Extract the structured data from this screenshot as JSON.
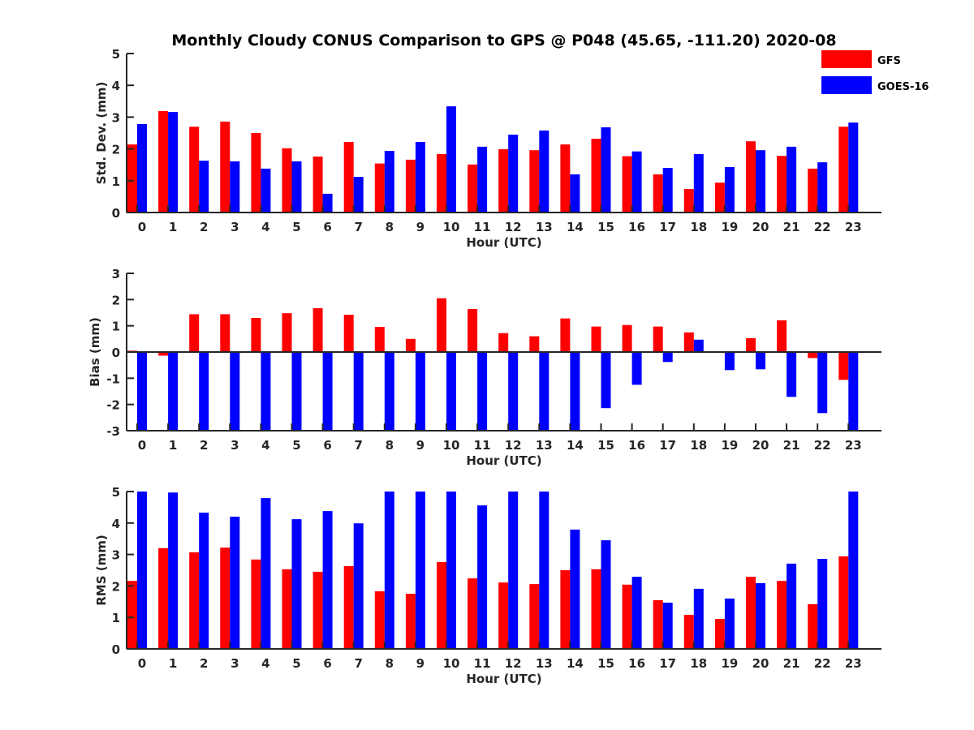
{
  "figure_title": "Monthly Cloudy CONUS Comparison to GPS @ P048 (45.65, -111.20) 2020-08",
  "legend": [
    {
      "label": "GFS",
      "color": "#ff0000"
    },
    {
      "label": "GOES-16",
      "color": "#0000ff"
    }
  ],
  "chart_data": [
    {
      "type": "bar",
      "title": "Monthly Cloudy CONUS Comparison to GPS @ P048 (45.65, -111.20) 2020-08",
      "xlabel": "Hour (UTC)",
      "ylabel": "Std. Dev. (mm)",
      "ylim": [
        0,
        5
      ],
      "yticks": [
        "0",
        "1",
        "2",
        "3",
        "4",
        "5"
      ],
      "categories": [
        "0",
        "1",
        "2",
        "3",
        "4",
        "5",
        "6",
        "7",
        "8",
        "9",
        "10",
        "11",
        "12",
        "13",
        "14",
        "15",
        "16",
        "17",
        "18",
        "19",
        "20",
        "21",
        "22",
        "23"
      ],
      "legend_position": "top-right",
      "grid": false,
      "series": [
        {
          "name": "GFS",
          "color": "#ff0000",
          "values": [
            2.14,
            3.19,
            2.7,
            2.86,
            2.5,
            2.02,
            1.76,
            2.22,
            1.54,
            1.66,
            1.84,
            1.51,
            1.99,
            1.96,
            2.14,
            2.32,
            1.77,
            1.2,
            0.74,
            0.94,
            2.24,
            1.78,
            1.38,
            2.7
          ]
        },
        {
          "name": "GOES-16",
          "color": "#0000ff",
          "values": [
            2.78,
            3.16,
            1.63,
            1.61,
            1.38,
            1.61,
            0.59,
            1.12,
            1.94,
            2.22,
            3.34,
            2.07,
            2.45,
            2.58,
            1.2,
            2.68,
            1.92,
            1.4,
            1.84,
            1.43,
            1.96,
            2.07,
            1.58,
            2.83
          ]
        }
      ]
    },
    {
      "type": "bar",
      "title": "",
      "xlabel": "Hour (UTC)",
      "ylabel": "Bias (mm)",
      "ylim": [
        -3,
        3
      ],
      "yticks": [
        "-3",
        "-2",
        "-1",
        "0",
        "1",
        "2",
        "3"
      ],
      "categories": [
        "0",
        "1",
        "2",
        "3",
        "4",
        "5",
        "6",
        "7",
        "8",
        "9",
        "10",
        "11",
        "12",
        "13",
        "14",
        "15",
        "16",
        "17",
        "18",
        "19",
        "20",
        "21",
        "22",
        "23"
      ],
      "grid": false,
      "zero_line": true,
      "series": [
        {
          "name": "GFS",
          "color": "#ff0000",
          "values": [
            0.05,
            -0.14,
            1.44,
            1.44,
            1.3,
            1.48,
            1.67,
            1.42,
            0.96,
            0.5,
            2.05,
            1.64,
            0.72,
            0.6,
            1.28,
            0.97,
            1.03,
            0.97,
            0.75,
            -0.03,
            0.53,
            1.21,
            -0.23,
            -1.06
          ]
        },
        {
          "name": "GOES-16",
          "color": "#0000ff",
          "values": [
            -3.0,
            -3.0,
            -3.0,
            -3.0,
            -3.0,
            -3.0,
            -3.0,
            -3.0,
            -3.0,
            -3.0,
            -3.0,
            -3.0,
            -3.0,
            -3.0,
            -3.0,
            -2.14,
            -1.25,
            -0.38,
            0.47,
            -0.69,
            -0.66,
            -1.71,
            -2.33,
            -3.0
          ]
        }
      ]
    },
    {
      "type": "bar",
      "title": "",
      "xlabel": "Hour (UTC)",
      "ylabel": "RMS (mm)",
      "ylim": [
        0,
        5
      ],
      "yticks": [
        "0",
        "1",
        "2",
        "3",
        "4",
        "5"
      ],
      "categories": [
        "0",
        "1",
        "2",
        "3",
        "4",
        "5",
        "6",
        "7",
        "8",
        "9",
        "10",
        "11",
        "12",
        "13",
        "14",
        "15",
        "16",
        "17",
        "18",
        "19",
        "20",
        "21",
        "22",
        "23"
      ],
      "grid": false,
      "series": [
        {
          "name": "GFS",
          "color": "#ff0000",
          "values": [
            2.16,
            3.2,
            3.07,
            3.22,
            2.84,
            2.53,
            2.45,
            2.63,
            1.83,
            1.75,
            2.76,
            2.24,
            2.11,
            2.06,
            2.5,
            2.53,
            2.04,
            1.55,
            1.08,
            0.95,
            2.29,
            2.16,
            1.42,
            2.94
          ]
        },
        {
          "name": "GOES-16",
          "color": "#0000ff",
          "values": [
            5.0,
            4.97,
            4.33,
            4.2,
            4.79,
            4.12,
            4.38,
            3.99,
            5.0,
            5.0,
            5.0,
            4.56,
            5.0,
            5.0,
            3.79,
            3.45,
            2.29,
            1.47,
            1.91,
            1.6,
            2.09,
            2.71,
            2.86,
            5.0
          ]
        }
      ]
    }
  ]
}
